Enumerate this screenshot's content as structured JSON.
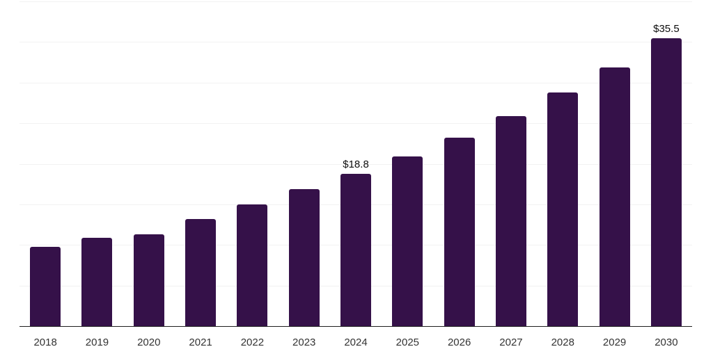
{
  "chart_data": {
    "type": "bar",
    "title": "",
    "xlabel": "",
    "ylabel": "",
    "categories": [
      "2018",
      "2019",
      "2020",
      "2021",
      "2022",
      "2023",
      "2024",
      "2025",
      "2026",
      "2027",
      "2028",
      "2029",
      "2030"
    ],
    "values": [
      9.8,
      10.9,
      11.3,
      13.2,
      15.0,
      16.9,
      18.8,
      20.9,
      23.2,
      25.9,
      28.8,
      31.9,
      35.5
    ],
    "data_labels": {
      "2024": "$18.8",
      "2030": "$35.5"
    },
    "ylim": [
      0,
      40
    ],
    "gridline_step": 5,
    "grid": "horizontal",
    "y_axis_labels_visible": false,
    "legend_position": "none",
    "colors": {
      "bar": "#351149",
      "gridline": "#f2f2f2",
      "axis_line": "#1f1f1f",
      "tick_label": "#333333",
      "data_label": "#0d0d0d"
    }
  }
}
